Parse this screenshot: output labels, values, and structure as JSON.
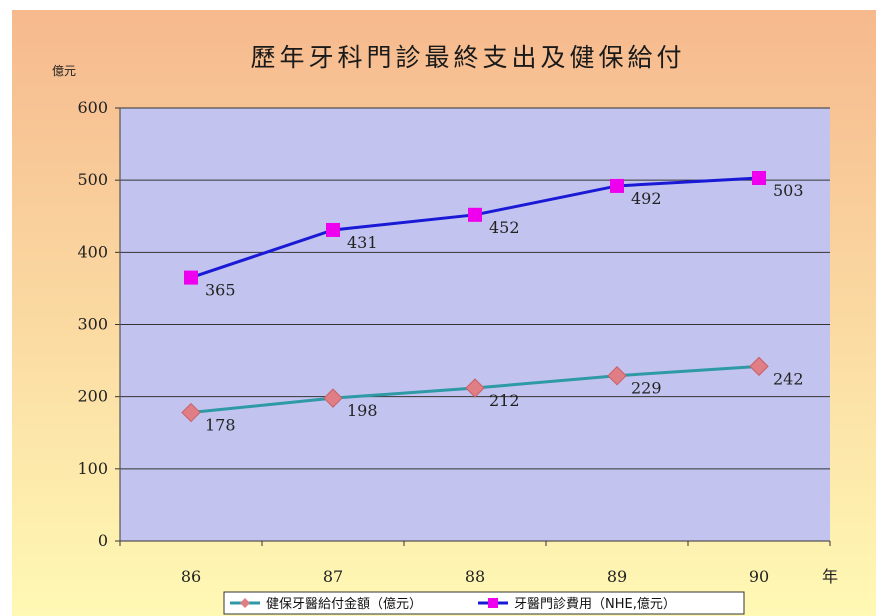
{
  "chart_data": {
    "type": "line",
    "title": "歷年牙科門診最終支出及健保給付",
    "ylabel": "億元",
    "xlabel": "年",
    "categories": [
      "86",
      "87",
      "88",
      "89",
      "90"
    ],
    "ylim": [
      0,
      600
    ],
    "yticks": [
      "600",
      "500",
      "400",
      "300",
      "200",
      "100",
      "0"
    ],
    "grid": true,
    "legend_position": "bottom",
    "series": [
      {
        "name": "健保牙醫給付金額（億元）",
        "values": [
          178,
          198,
          212,
          229,
          242
        ],
        "labels": [
          "178",
          "198",
          "212",
          "229",
          "242"
        ],
        "color": "#2e9aa6",
        "marker": "diamond",
        "marker_color": "#e07e86"
      },
      {
        "name": "牙醫門診費用（NHE,億元）",
        "values": [
          365,
          431,
          452,
          492,
          503
        ],
        "labels": [
          "365",
          "431",
          "452",
          "492",
          "503"
        ],
        "color": "#1a1ad6",
        "marker": "square",
        "marker_color": "#ee00ee"
      }
    ],
    "colors": {
      "plot_background": "#c2c4ef",
      "gradient_top": "#f6b98e",
      "gradient_bottom": "#fff9b4",
      "gridline": "#333333"
    }
  }
}
